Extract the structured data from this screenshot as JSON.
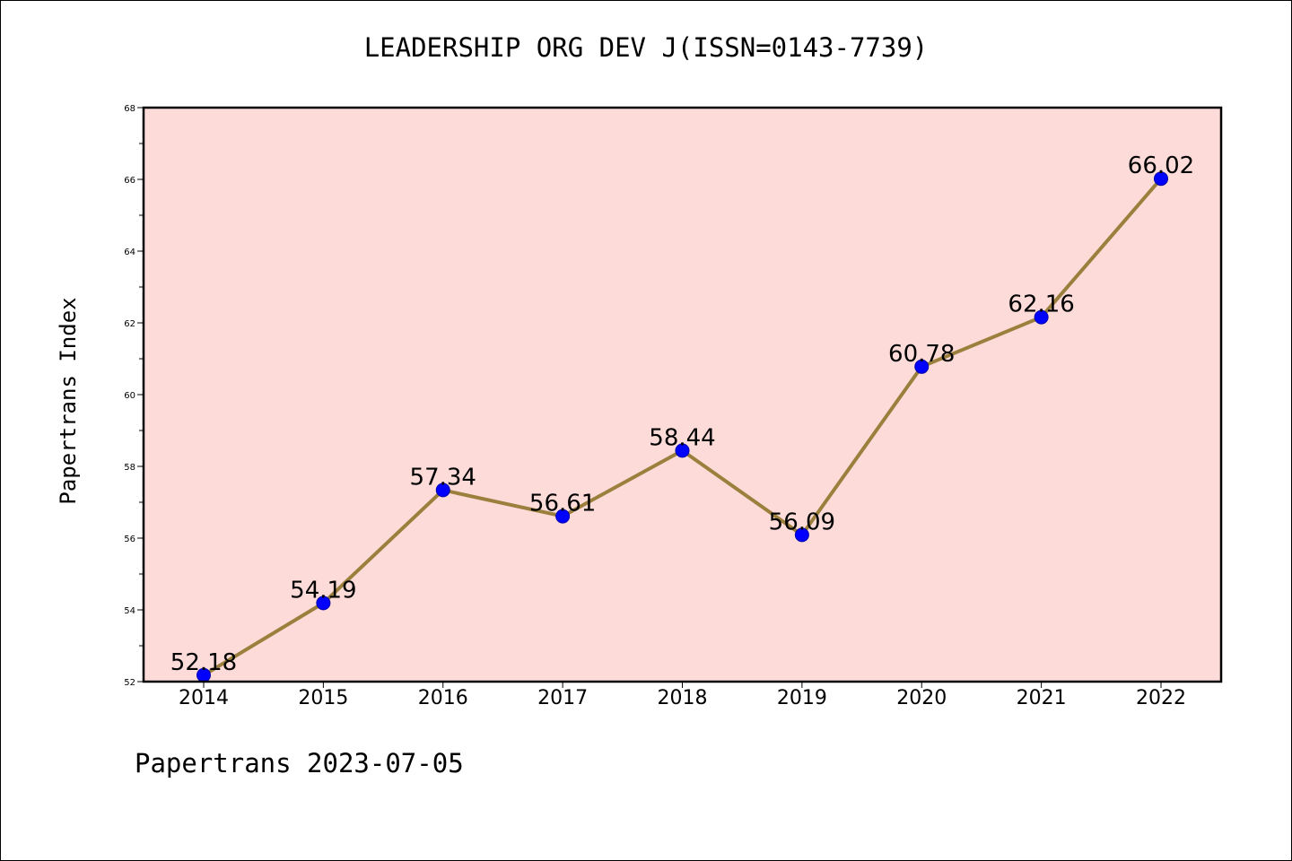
{
  "chart_data": {
    "type": "line",
    "title": "LEADERSHIP ORG DEV J(ISSN=0143-7739)",
    "ylabel": "Papertrans Index",
    "xlabel": "",
    "footer": "Papertrans 2023-07-05",
    "x": [
      "2014",
      "2015",
      "2016",
      "2017",
      "2018",
      "2019",
      "2020",
      "2021",
      "2022"
    ],
    "values": [
      52.18,
      54.19,
      57.34,
      56.61,
      58.44,
      56.09,
      60.78,
      62.16,
      66.02
    ],
    "data_labels": [
      "52.18",
      "54.19",
      "57.34",
      "56.61",
      "58.44",
      "56.09",
      "60.78",
      "62.16",
      "66.02"
    ],
    "ylim": [
      52,
      68
    ],
    "yticks": [
      52,
      54,
      56,
      58,
      60,
      62,
      64,
      66,
      68
    ],
    "grid": false,
    "colors": {
      "plot_background": "#fddbd9",
      "line": "#9b7f3c",
      "marker": "#0000ff"
    }
  }
}
